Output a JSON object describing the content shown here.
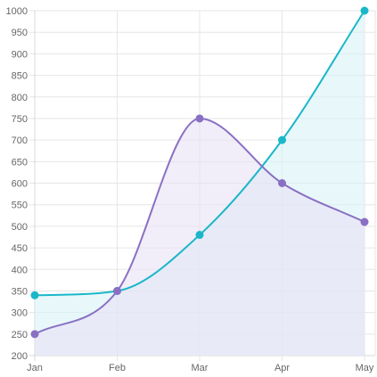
{
  "chart_data": {
    "type": "line",
    "categories": [
      "Jan",
      "Feb",
      "Mar",
      "Apr",
      "May"
    ],
    "ylim": [
      200,
      1000
    ],
    "y_ticks": [
      200,
      250,
      300,
      350,
      400,
      450,
      500,
      550,
      600,
      650,
      700,
      750,
      800,
      850,
      900,
      950,
      1000
    ],
    "grid": true,
    "legend": "none",
    "fill": "area-to-bottom",
    "smooth": true,
    "series": [
      {
        "values": [
          340,
          350,
          480,
          700,
          1000
        ],
        "color": "#1ab7c9",
        "fill_color": "#d9f4f7"
      },
      {
        "values": [
          250,
          350,
          750,
          600,
          510
        ],
        "color": "#8a70c4",
        "fill_color": "#e8e2f5"
      }
    ]
  }
}
